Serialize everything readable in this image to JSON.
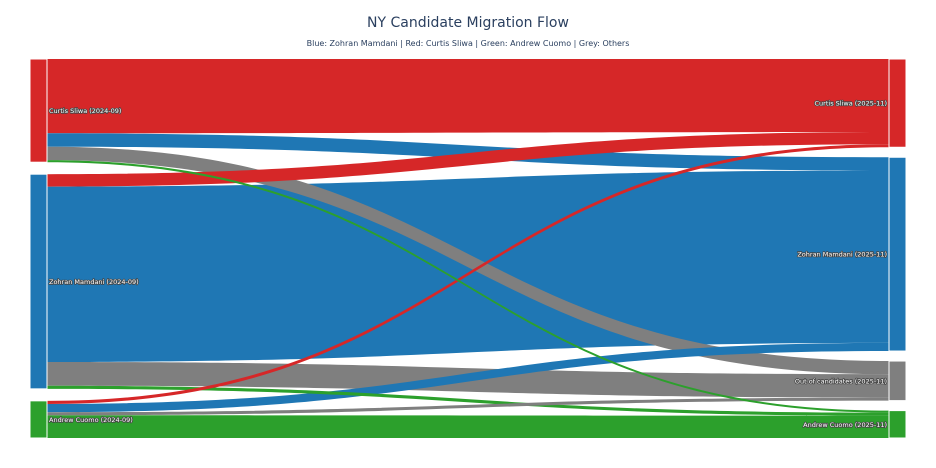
{
  "chart_data": {
    "type": "sankey",
    "title": "NY Candidate Migration Flow",
    "subtitle": "Blue: Zohran Mamdani | Red: Curtis Sliwa | Green: Andrew Cuomo | Grey: Others",
    "color_legend": {
      "Zohran Mamdani": "#1f77b4",
      "Curtis Sliwa": "#d62728",
      "Andrew Cuomo": "#2ca02c",
      "Others": "#7f7f7f"
    },
    "nodes": [
      {
        "id": "src-sliwa",
        "label": "Curtis Sliwa (2024-09)",
        "side": "source",
        "color": "#d62728"
      },
      {
        "id": "src-mamdani",
        "label": "Zohran Mamdani (2024-09)",
        "side": "source",
        "color": "#1f77b4"
      },
      {
        "id": "src-cuomo",
        "label": "Andrew Cuomo (2024-09)",
        "side": "source",
        "color": "#2ca02c"
      },
      {
        "id": "dst-sliwa",
        "label": "Curtis Sliwa (2025-11)",
        "side": "target",
        "color": "#d62728"
      },
      {
        "id": "dst-mamdani",
        "label": "Zohran Mamdani (2025-11)",
        "side": "target",
        "color": "#1f77b4"
      },
      {
        "id": "dst-others",
        "label": "Out of candidates (2025-11)",
        "side": "target",
        "color": "#7f7f7f"
      },
      {
        "id": "dst-cuomo",
        "label": "Andrew Cuomo (2025-11)",
        "side": "target",
        "color": "#2ca02c"
      }
    ],
    "links": [
      {
        "source": "src-sliwa",
        "target": "dst-sliwa",
        "value": 72,
        "color": "#d62728"
      },
      {
        "source": "src-sliwa",
        "target": "dst-mamdani",
        "value": 13,
        "color": "#1f77b4"
      },
      {
        "source": "src-sliwa",
        "target": "dst-others",
        "value": 13,
        "color": "#7f7f7f"
      },
      {
        "source": "src-sliwa",
        "target": "dst-cuomo",
        "value": 2,
        "color": "#2ca02c"
      },
      {
        "source": "src-mamdani",
        "target": "dst-sliwa",
        "value": 12,
        "color": "#d62728"
      },
      {
        "source": "src-mamdani",
        "target": "dst-mamdani",
        "value": 170,
        "color": "#1f77b4"
      },
      {
        "source": "src-mamdani",
        "target": "dst-others",
        "value": 23,
        "color": "#7f7f7f"
      },
      {
        "source": "src-mamdani",
        "target": "dst-cuomo",
        "value": 3,
        "color": "#2ca02c"
      },
      {
        "source": "src-cuomo",
        "target": "dst-sliwa",
        "value": 3,
        "color": "#d62728"
      },
      {
        "source": "src-cuomo",
        "target": "dst-mamdani",
        "value": 8,
        "color": "#1f77b4"
      },
      {
        "source": "src-cuomo",
        "target": "dst-others",
        "value": 3,
        "color": "#7f7f7f"
      },
      {
        "source": "src-cuomo",
        "target": "dst-cuomo",
        "value": 22,
        "color": "#2ca02c"
      }
    ]
  }
}
